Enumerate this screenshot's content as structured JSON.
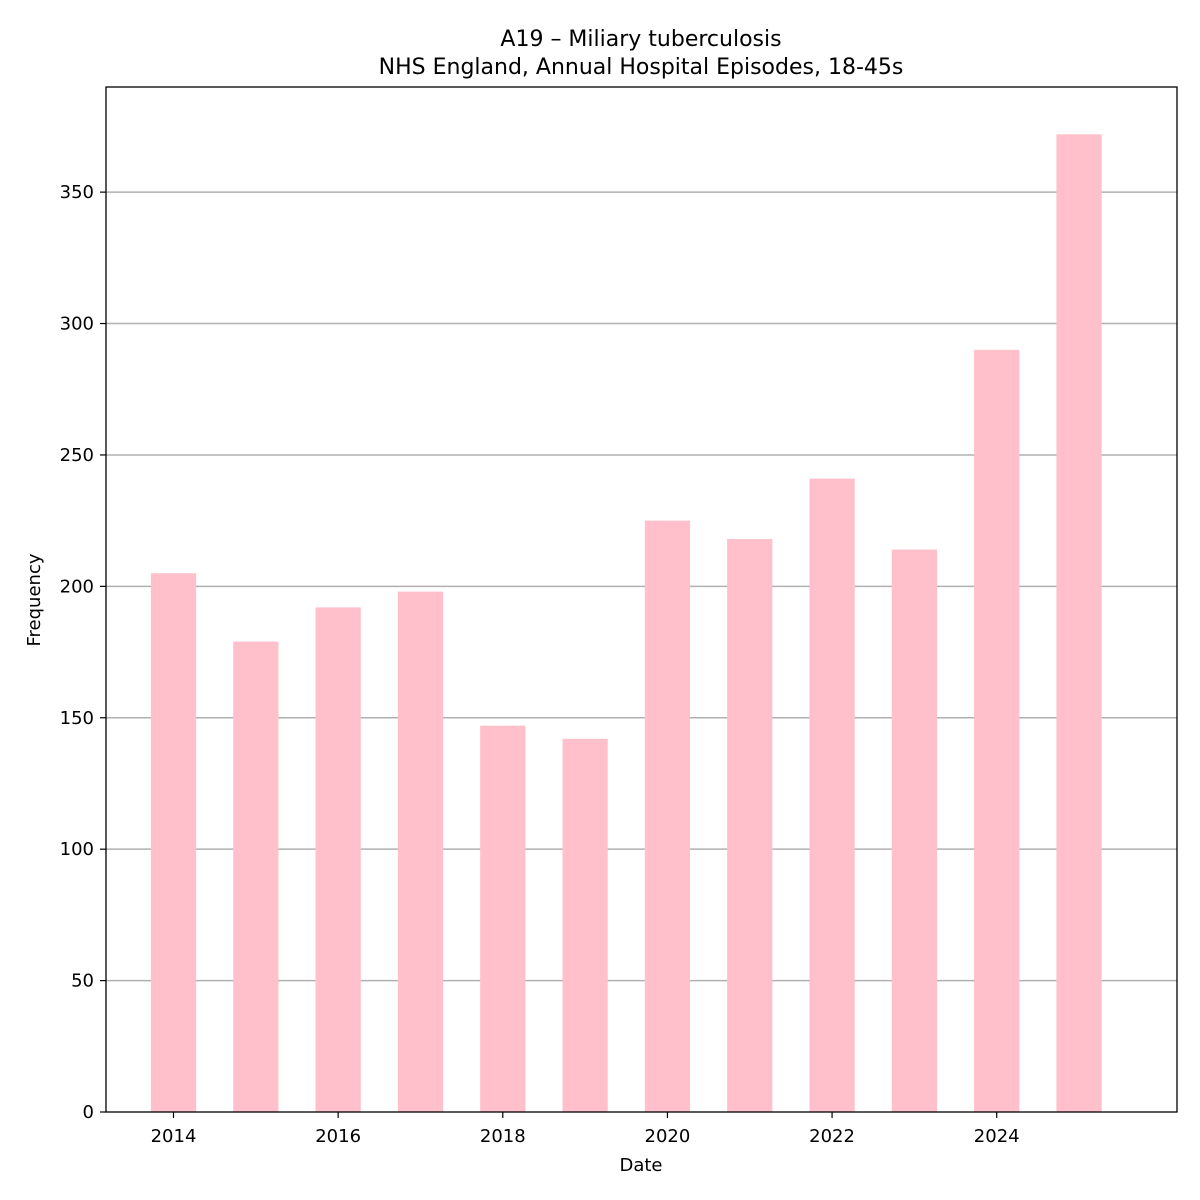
{
  "chart_data": {
    "type": "bar",
    "title": "A19 – Miliary tuberculosis",
    "subtitle": "NHS England, Annual Hospital Episodes, 18-45s",
    "xlabel": "Date",
    "ylabel": "Frequency",
    "categories": [
      2014,
      2015,
      2016,
      2017,
      2018,
      2019,
      2020,
      2021,
      2022,
      2023,
      2024,
      2025
    ],
    "values": [
      205,
      179,
      192,
      198,
      147,
      142,
      225,
      218,
      241,
      214,
      290,
      372
    ],
    "x_ticks": [
      "2014",
      "2016",
      "2018",
      "2020",
      "2022",
      "2024"
    ],
    "y_ticks": [
      "0",
      "50",
      "100",
      "150",
      "200",
      "250",
      "300",
      "350"
    ],
    "ylim": [
      0,
      390
    ],
    "xlim": [
      2013.18,
      2026.19
    ],
    "grid": "horizontal",
    "bar_color": "#ffc0cb",
    "grid_color": "#b0b0b0"
  }
}
